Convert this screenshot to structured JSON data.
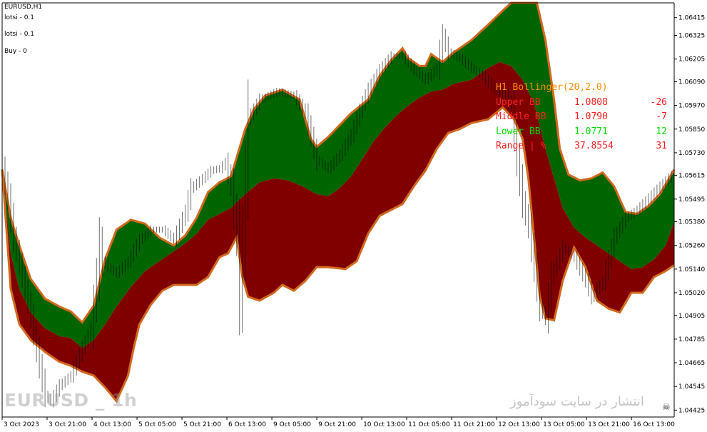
{
  "window": {
    "title": "EURUSD,H1"
  },
  "info_lines": [
    "lotsi - 0.1",
    "lotsi - 0.1",
    "Buy - 0"
  ],
  "colors": {
    "background": "#ffffff",
    "upper_fill": "#006400",
    "lower_fill": "#800000",
    "band_line": "#d2691e",
    "axis": "#000000",
    "title_color": "#ff8c00",
    "red_text": "#ff2020",
    "green_text": "#00dd00"
  },
  "indicator_panel": {
    "title": "H1 Bollinger(20,2.0)",
    "rows": [
      {
        "label": "Upper BB",
        "value": "1.0808",
        "points": "-26",
        "color": "#ff2020"
      },
      {
        "label": "Middle BB",
        "value": "1.0790",
        "points": "-7",
        "color": "#ff2020"
      },
      {
        "label": "Lower BB",
        "value": "1.0771",
        "points": "12",
        "color": "#00dd00"
      },
      {
        "label": "Range | %",
        "value": "37.8554",
        "points": "31",
        "color": "#ff2020"
      }
    ]
  },
  "watermark_left": "EURUSD _ 1h",
  "watermark_right": "انتشار در سایت سودآموز",
  "chart_data": {
    "type": "area",
    "symbol": "EURUSD",
    "timeframe": "H1",
    "indicator": "Bollinger Bands (20, 2.0)",
    "ylim": [
      1.0439,
      1.0649
    ],
    "y_ticks": [
      1.06415,
      1.06325,
      1.06205,
      1.0609,
      1.0597,
      1.0585,
      1.0573,
      1.05615,
      1.05495,
      1.0538,
      1.0526,
      1.0514,
      1.0502,
      1.04905,
      1.04785,
      1.04665,
      1.04545,
      1.04425
    ],
    "x_ticks": [
      "3 Oct 2023",
      "3 Oct 21:00",
      "4 Oct 13:00",
      "5 Oct 05:00",
      "5 Oct 21:00",
      "6 Oct 13:00",
      "9 Oct 05:00",
      "9 Oct 21:00",
      "10 Oct 13:00",
      "11 Oct 05:00",
      "11 Oct 21:00",
      "12 Oct 13:00",
      "13 Oct 05:00",
      "13 Oct 21:00",
      "16 Oct 13:00"
    ],
    "x_range_bars": [
      0,
      235
    ],
    "series": [
      {
        "name": "Upper BB",
        "points": [
          [
            0,
            1.05645
          ],
          [
            3,
            1.054
          ],
          [
            6,
            1.0526
          ],
          [
            10,
            1.0509
          ],
          [
            15,
            1.0499
          ],
          [
            20,
            1.0495
          ],
          [
            24,
            1.04925
          ],
          [
            28,
            1.0487
          ],
          [
            32,
            1.04955
          ],
          [
            36,
            1.0519
          ],
          [
            40,
            1.0534
          ],
          [
            45,
            1.0539
          ],
          [
            50,
            1.0537
          ],
          [
            55,
            1.053
          ],
          [
            60,
            1.0526
          ],
          [
            64,
            1.0531
          ],
          [
            68,
            1.054
          ],
          [
            72,
            1.0553
          ],
          [
            76,
            1.0558
          ],
          [
            80,
            1.0561
          ],
          [
            85,
            1.0585
          ],
          [
            88,
            1.0595
          ],
          [
            92,
            1.0602
          ],
          [
            98,
            1.0605
          ],
          [
            104,
            1.06
          ],
          [
            108,
            1.058
          ],
          [
            110,
            1.0576
          ],
          [
            114,
            1.0581
          ],
          [
            118,
            1.0587
          ],
          [
            122,
            1.0593
          ],
          [
            128,
            1.06
          ],
          [
            132,
            1.0612
          ],
          [
            136,
            1.062
          ],
          [
            140,
            1.0626
          ],
          [
            142,
            1.0621
          ],
          [
            146,
            1.0617
          ],
          [
            148,
            1.0617
          ],
          [
            150,
            1.0623
          ],
          [
            154,
            1.0619
          ],
          [
            158,
            1.0624
          ],
          [
            164,
            1.063
          ],
          [
            170,
            1.0638
          ],
          [
            175,
            1.0645
          ],
          [
            178,
            1.0649
          ],
          [
            187,
            1.0649
          ],
          [
            190,
            1.063
          ],
          [
            193,
            1.06
          ],
          [
            195,
            1.0575
          ],
          [
            198,
            1.0562
          ],
          [
            202,
            1.0559
          ],
          [
            206,
            1.056
          ],
          [
            210,
            1.0563
          ],
          [
            214,
            1.0556
          ],
          [
            218,
            1.0543
          ],
          [
            222,
            1.0542
          ],
          [
            226,
            1.0546
          ],
          [
            230,
            1.0552
          ],
          [
            235,
            1.05645
          ]
        ]
      },
      {
        "name": "Middle BB",
        "points": [
          [
            0,
            1.05645
          ],
          [
            3,
            1.0522
          ],
          [
            6,
            1.0504
          ],
          [
            10,
            1.0492
          ],
          [
            15,
            1.0484
          ],
          [
            20,
            1.048
          ],
          [
            24,
            1.0479
          ],
          [
            28,
            1.0474
          ],
          [
            32,
            1.0478
          ],
          [
            36,
            1.0486
          ],
          [
            40,
            1.0495
          ],
          [
            45,
            1.0505
          ],
          [
            50,
            1.0513
          ],
          [
            55,
            1.0518
          ],
          [
            60,
            1.0523
          ],
          [
            64,
            1.0527
          ],
          [
            68,
            1.0532
          ],
          [
            72,
            1.0539
          ],
          [
            76,
            1.0542
          ],
          [
            80,
            1.0545
          ],
          [
            85,
            1.0552
          ],
          [
            90,
            1.0558
          ],
          [
            95,
            1.056
          ],
          [
            100,
            1.0559
          ],
          [
            105,
            1.0556
          ],
          [
            110,
            1.0552
          ],
          [
            114,
            1.0551
          ],
          [
            118,
            1.0555
          ],
          [
            122,
            1.0561
          ],
          [
            126,
            1.057
          ],
          [
            130,
            1.0579
          ],
          [
            134,
            1.0586
          ],
          [
            138,
            1.0592
          ],
          [
            142,
            1.0597
          ],
          [
            146,
            1.0601
          ],
          [
            150,
            1.0604
          ],
          [
            154,
            1.0605
          ],
          [
            158,
            1.0608
          ],
          [
            164,
            1.061
          ],
          [
            170,
            1.0616
          ],
          [
            174,
            1.0619
          ],
          [
            178,
            1.0617
          ],
          [
            182,
            1.061
          ],
          [
            186,
            1.0598
          ],
          [
            190,
            1.0575
          ],
          [
            193,
            1.056
          ],
          [
            196,
            1.0545
          ],
          [
            200,
            1.0535
          ],
          [
            204,
            1.053
          ],
          [
            208,
            1.0526
          ],
          [
            212,
            1.0522
          ],
          [
            216,
            1.0518
          ],
          [
            220,
            1.0514
          ],
          [
            224,
            1.0515
          ],
          [
            228,
            1.0519
          ],
          [
            232,
            1.0526
          ],
          [
            235,
            1.0538
          ]
        ]
      },
      {
        "name": "Lower BB",
        "points": [
          [
            0,
            1.05645
          ],
          [
            3,
            1.0504
          ],
          [
            6,
            1.0486
          ],
          [
            10,
            1.0478
          ],
          [
            15,
            1.0472
          ],
          [
            20,
            1.0467
          ],
          [
            24,
            1.0465
          ],
          [
            28,
            1.0462
          ],
          [
            32,
            1.046
          ],
          [
            36,
            1.0454
          ],
          [
            40,
            1.0447
          ],
          [
            44,
            1.046
          ],
          [
            46,
            1.0474
          ],
          [
            48,
            1.0486
          ],
          [
            52,
            1.0496
          ],
          [
            56,
            1.0503
          ],
          [
            60,
            1.0506
          ],
          [
            64,
            1.0506
          ],
          [
            68,
            1.0506
          ],
          [
            72,
            1.051
          ],
          [
            76,
            1.052
          ],
          [
            79,
            1.0522
          ],
          [
            82,
            1.053
          ],
          [
            84,
            1.051
          ],
          [
            86,
            1.05
          ],
          [
            90,
            1.0498
          ],
          [
            95,
            1.0502
          ],
          [
            98,
            1.0506
          ],
          [
            102,
            1.0503
          ],
          [
            106,
            1.0508
          ],
          [
            110,
            1.0515
          ],
          [
            114,
            1.0515
          ],
          [
            120,
            1.0514
          ],
          [
            124,
            1.0518
          ],
          [
            128,
            1.0532
          ],
          [
            132,
            1.0541
          ],
          [
            136,
            1.0544
          ],
          [
            140,
            1.0547
          ],
          [
            144,
            1.0556
          ],
          [
            148,
            1.0564
          ],
          [
            152,
            1.0575
          ],
          [
            156,
            1.0583
          ],
          [
            160,
            1.0585
          ],
          [
            164,
            1.0588
          ],
          [
            170,
            1.059
          ],
          [
            175,
            1.0596
          ],
          [
            179,
            1.059
          ],
          [
            182,
            1.058
          ],
          [
            184,
            1.056
          ],
          [
            186,
            1.053
          ],
          [
            188,
            1.05
          ],
          [
            190,
            1.0489
          ],
          [
            193,
            1.0488
          ],
          [
            196,
            1.0508
          ],
          [
            200,
            1.0525
          ],
          [
            204,
            1.0515
          ],
          [
            208,
            1.0498
          ],
          [
            212,
            1.0494
          ],
          [
            216,
            1.0492
          ],
          [
            220,
            1.0502
          ],
          [
            224,
            1.0502
          ],
          [
            228,
            1.051
          ],
          [
            232,
            1.0513
          ],
          [
            235,
            1.0516
          ]
        ]
      },
      {
        "name": "Price",
        "points": [
          [
            0,
            1.0565
          ],
          [
            2,
            1.055
          ],
          [
            4,
            1.053
          ],
          [
            7,
            1.051
          ],
          [
            10,
            1.049
          ],
          [
            13,
            1.0465
          ],
          [
            15,
            1.045
          ],
          [
            17,
            1.0447
          ],
          [
            20,
            1.0455
          ],
          [
            24,
            1.046
          ],
          [
            28,
            1.0474
          ],
          [
            31,
            1.0483
          ],
          [
            33,
            1.051
          ],
          [
            34,
            1.0528
          ],
          [
            35,
            1.0518
          ],
          [
            37,
            1.0515
          ],
          [
            40,
            1.0512
          ],
          [
            44,
            1.0518
          ],
          [
            48,
            1.0529
          ],
          [
            52,
            1.0534
          ],
          [
            56,
            1.0534
          ],
          [
            60,
            1.0529
          ],
          [
            64,
            1.0543
          ],
          [
            66,
            1.0555
          ],
          [
            70,
            1.056
          ],
          [
            73,
            1.0564
          ],
          [
            76,
            1.0565
          ],
          [
            78,
            1.0568
          ],
          [
            80,
            1.0556
          ],
          [
            82,
            1.053
          ],
          [
            83,
            1.05
          ],
          [
            84,
            1.0528
          ],
          [
            86,
            1.059
          ],
          [
            90,
            1.06
          ],
          [
            96,
            1.0604
          ],
          [
            102,
            1.0602
          ],
          [
            106,
            1.0593
          ],
          [
            110,
            1.0569
          ],
          [
            114,
            1.0565
          ],
          [
            118,
            1.0572
          ],
          [
            122,
            1.0582
          ],
          [
            126,
            1.0598
          ],
          [
            128,
            1.0605
          ],
          [
            132,
            1.0615
          ],
          [
            136,
            1.0622
          ],
          [
            140,
            1.0622
          ],
          [
            144,
            1.0615
          ],
          [
            148,
            1.061
          ],
          [
            152,
            1.0616
          ],
          [
            154,
            1.0632
          ],
          [
            156,
            1.0624
          ],
          [
            160,
            1.0621
          ],
          [
            164,
            1.0616
          ],
          [
            168,
            1.0612
          ],
          [
            172,
            1.0605
          ],
          [
            176,
            1.0602
          ],
          [
            178,
            1.0595
          ],
          [
            180,
            1.057
          ],
          [
            182,
            1.0548
          ],
          [
            184,
            1.0535
          ],
          [
            186,
            1.0515
          ],
          [
            188,
            1.0495
          ],
          [
            190,
            1.0489
          ],
          [
            192,
            1.051
          ],
          [
            196,
            1.0525
          ],
          [
            200,
            1.052
          ],
          [
            204,
            1.0508
          ],
          [
            206,
            1.05
          ],
          [
            210,
            1.0508
          ],
          [
            214,
            1.053
          ],
          [
            218,
            1.054
          ],
          [
            222,
            1.0544
          ],
          [
            226,
            1.055
          ],
          [
            230,
            1.0556
          ],
          [
            235,
            1.0563
          ]
        ]
      }
    ]
  }
}
